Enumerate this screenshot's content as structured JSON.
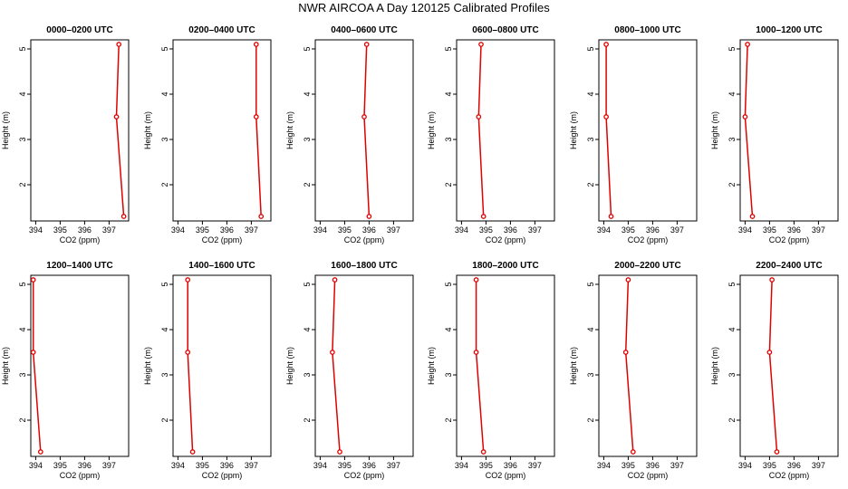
{
  "title": "NWR AIRCOA A  Day 120125  Calibrated Profiles",
  "chart_data": {
    "type": "line",
    "xlabel": "CO2 (ppm)",
    "ylabel": "Height (m)",
    "xlim": [
      393.8,
      397.8
    ],
    "ylim": [
      1.2,
      5.2
    ],
    "x_ticks": [
      394,
      395,
      396,
      397
    ],
    "y_ticks": [
      2,
      3,
      4,
      5
    ],
    "line_color": "#e00000",
    "panels": [
      {
        "title": "0000–0200 UTC",
        "co2": [
          397.4,
          397.3,
          397.6
        ],
        "height": [
          5.1,
          3.5,
          1.3
        ]
      },
      {
        "title": "0200–0400 UTC",
        "co2": [
          397.2,
          397.2,
          397.4
        ],
        "height": [
          5.1,
          3.5,
          1.3
        ]
      },
      {
        "title": "0400–0600 UTC",
        "co2": [
          395.9,
          395.8,
          396.0
        ],
        "height": [
          5.1,
          3.5,
          1.3
        ]
      },
      {
        "title": "0600–0800 UTC",
        "co2": [
          394.8,
          394.7,
          394.9
        ],
        "height": [
          5.1,
          3.5,
          1.3
        ]
      },
      {
        "title": "0800–1000 UTC",
        "co2": [
          394.1,
          394.1,
          394.3
        ],
        "height": [
          5.1,
          3.5,
          1.3
        ]
      },
      {
        "title": "1000–1200 UTC",
        "co2": [
          394.1,
          394.0,
          394.3
        ],
        "height": [
          5.1,
          3.5,
          1.3
        ]
      },
      {
        "title": "1200–1400 UTC",
        "co2": [
          393.9,
          393.9,
          394.2
        ],
        "height": [
          5.1,
          3.5,
          1.3
        ]
      },
      {
        "title": "1400–1600 UTC",
        "co2": [
          394.4,
          394.4,
          394.6
        ],
        "height": [
          5.1,
          3.5,
          1.3
        ]
      },
      {
        "title": "1600–1800 UTC",
        "co2": [
          394.6,
          394.5,
          394.8
        ],
        "height": [
          5.1,
          3.5,
          1.3
        ]
      },
      {
        "title": "1800–2000 UTC",
        "co2": [
          394.6,
          394.6,
          394.9
        ],
        "height": [
          5.1,
          3.5,
          1.3
        ]
      },
      {
        "title": "2000–2200 UTC",
        "co2": [
          395.0,
          394.9,
          395.2
        ],
        "height": [
          5.1,
          3.5,
          1.3
        ]
      },
      {
        "title": "2200–2400 UTC",
        "co2": [
          395.1,
          395.0,
          395.3
        ],
        "height": [
          5.1,
          3.5,
          1.3
        ]
      }
    ]
  }
}
